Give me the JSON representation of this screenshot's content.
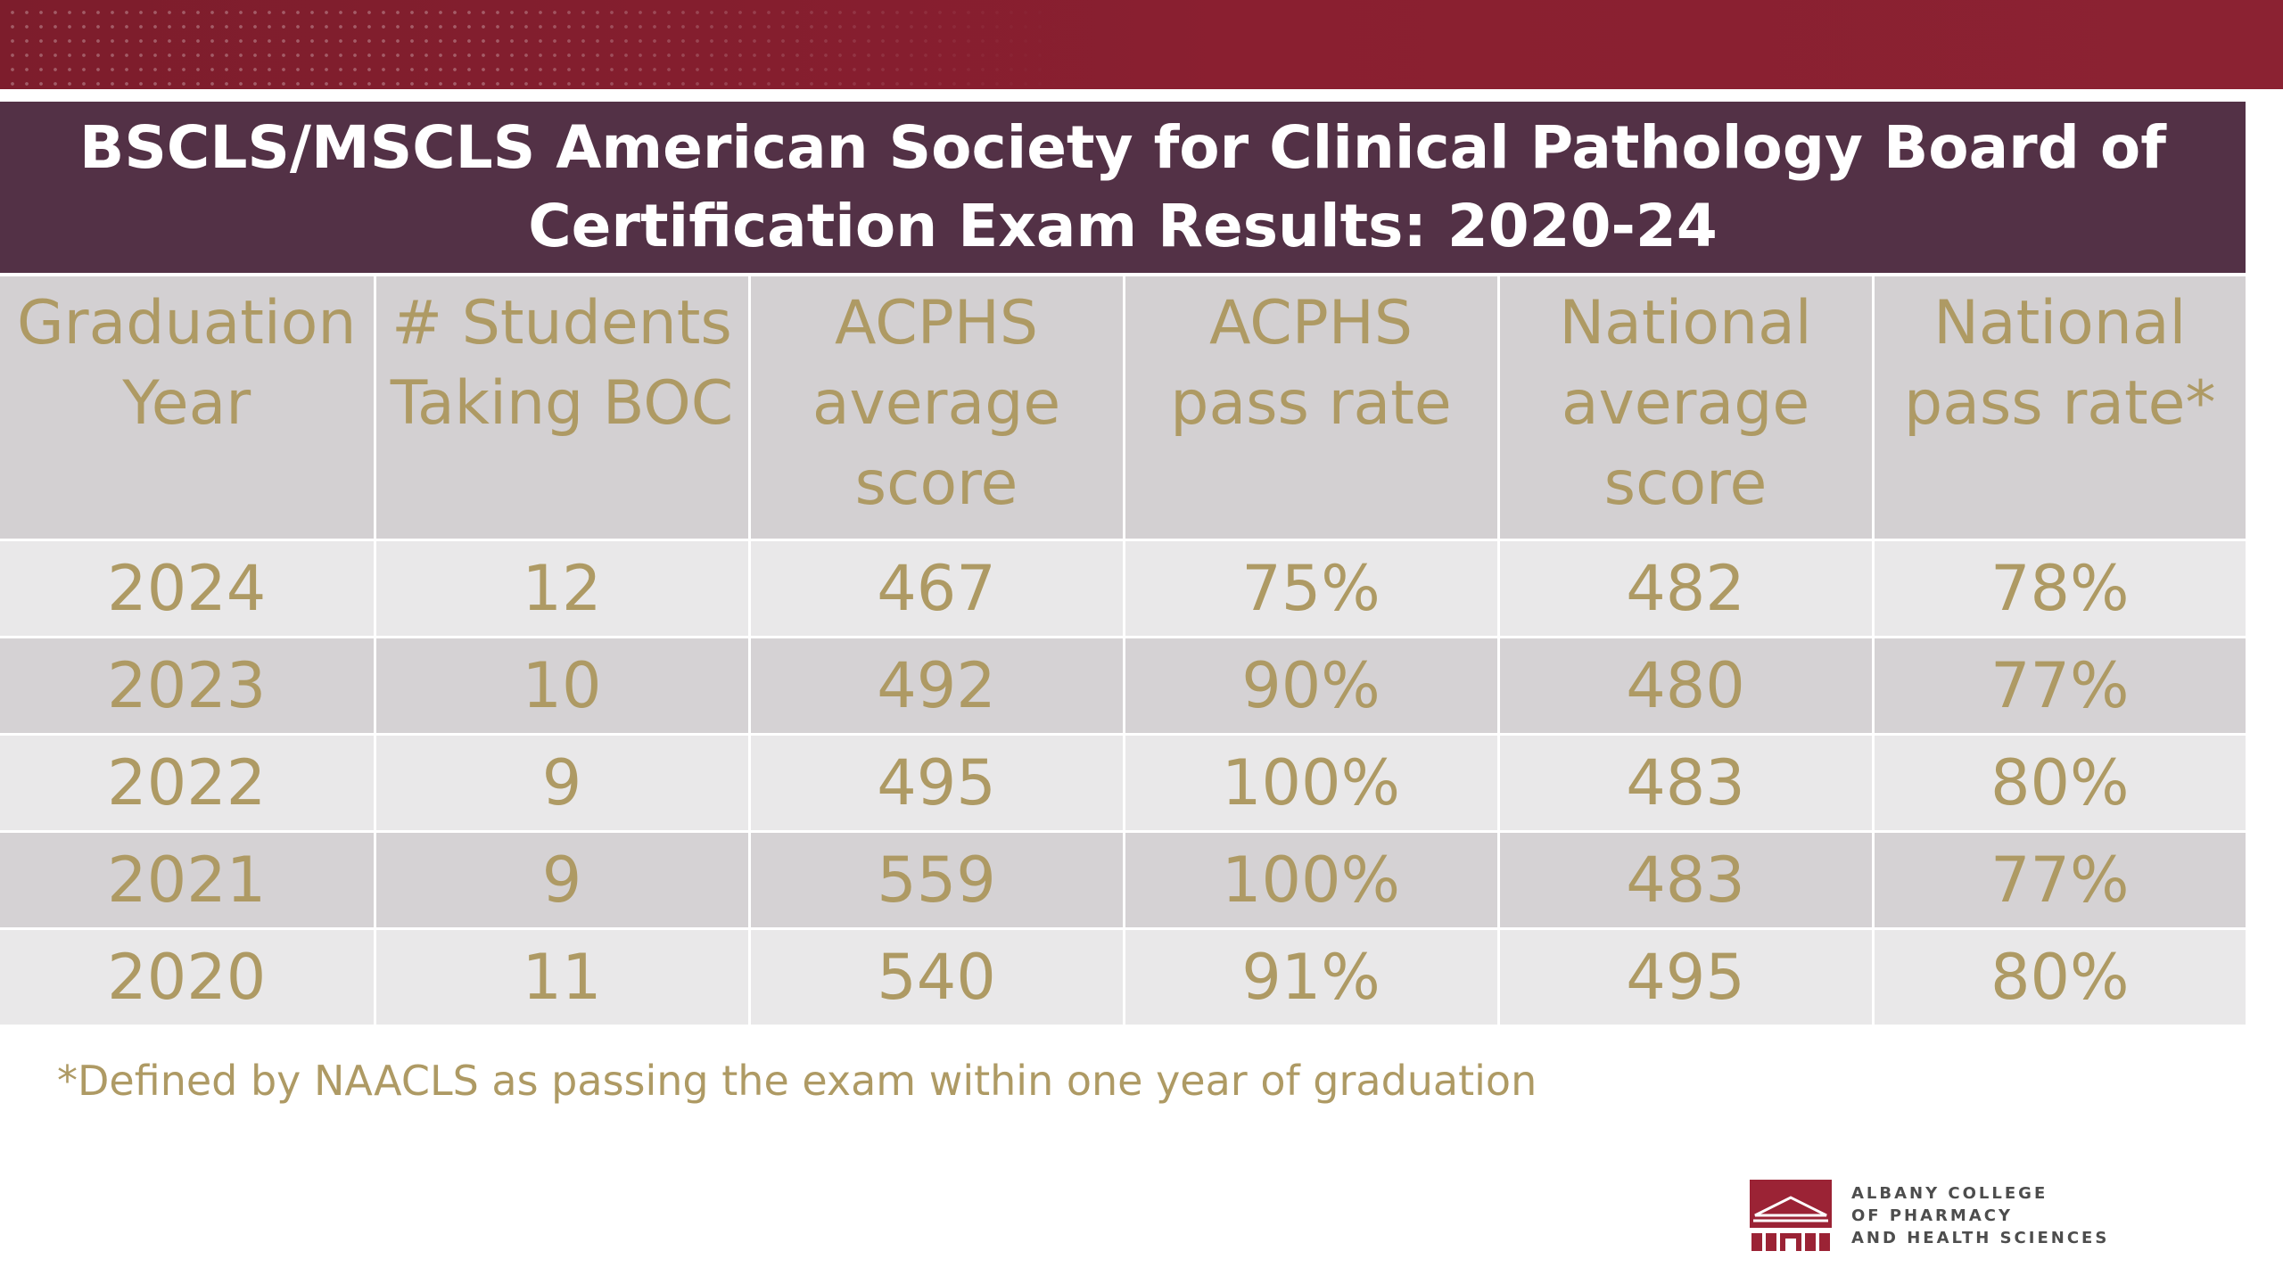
{
  "colors": {
    "banner": "#8a1f30",
    "title_bar": "#533146",
    "header_row": "#d3d0d2",
    "row_light": "#e9e8e9",
    "row_dark": "#d5d2d4",
    "cell_text": "#ae9a64"
  },
  "table": {
    "title_line1": "BSCLS/MSCLS American Society for Clinical Pathology Board of",
    "title_line2": "Certification Exam Results: 2020-24",
    "headers": [
      [
        "Graduation",
        "Year"
      ],
      [
        "# Students",
        "Taking BOC"
      ],
      [
        "ACPHS",
        "average",
        "score"
      ],
      [
        "ACPHS",
        "pass rate"
      ],
      [
        "National",
        "average",
        "score"
      ],
      [
        "National",
        "pass rate*"
      ]
    ],
    "rows": [
      [
        "2024",
        "12",
        "467",
        "75%",
        "482",
        "78%"
      ],
      [
        "2023",
        "10",
        "492",
        "90%",
        "480",
        "77%"
      ],
      [
        "2022",
        "9",
        "495",
        "100%",
        "483",
        "80%"
      ],
      [
        "2021",
        "9",
        "559",
        "100%",
        "483",
        "77%"
      ],
      [
        "2020",
        "11",
        "540",
        "91%",
        "495",
        "80%"
      ]
    ]
  },
  "footnote": "*Defined by NAACLS as passing the exam within one year of graduation",
  "logo": {
    "icon": "college-building-logo-icon",
    "line1": "ALBANY COLLEGE",
    "line2": "OF PHARMACY",
    "line3": "AND HEALTH SCIENCES"
  }
}
